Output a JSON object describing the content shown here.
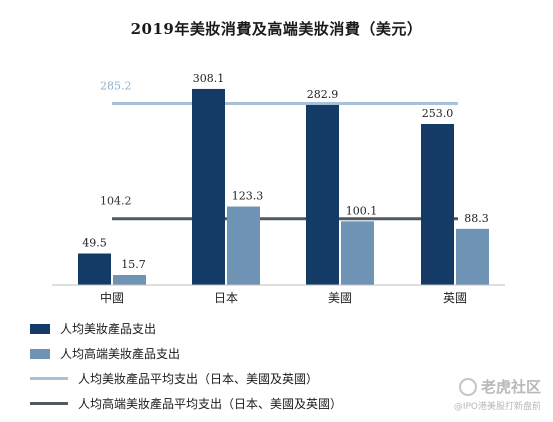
{
  "chart_data": {
    "type": "bar",
    "title": "2019年美妝消費及高端美妝消費（美元）",
    "categories": [
      "中國",
      "日本",
      "美國",
      "英國"
    ],
    "series": [
      {
        "name": "人均美妝產品支出",
        "values": [
          49.5,
          308.1,
          282.9,
          253.0
        ],
        "labels": [
          "49.5",
          "308.1",
          "282.9",
          "253.0"
        ],
        "color": "#143a66"
      },
      {
        "name": "人均高端美妝產品支出",
        "values": [
          15.7,
          123.3,
          100.1,
          88.3
        ],
        "labels": [
          "15.7",
          "123.3",
          "100.1",
          "88.3"
        ],
        "color": "#6f93b4"
      }
    ],
    "reference_lines": [
      {
        "name": "人均美妝產品平均支出（日本、美國及英國）",
        "value": 285.2,
        "label": "285.2",
        "color": "#a6c1d8"
      },
      {
        "name": "人均高端美妝產品平均支出（日本、美國及英國）",
        "value": 104.2,
        "label": "104.2",
        "color": "#4f5a63"
      }
    ],
    "ylim": [
      0,
      330
    ],
    "grid": false,
    "legend_position": "bottom-left"
  },
  "watermark": {
    "line1": "老虎社区",
    "line2": "@IPO港美股打新盘前"
  }
}
